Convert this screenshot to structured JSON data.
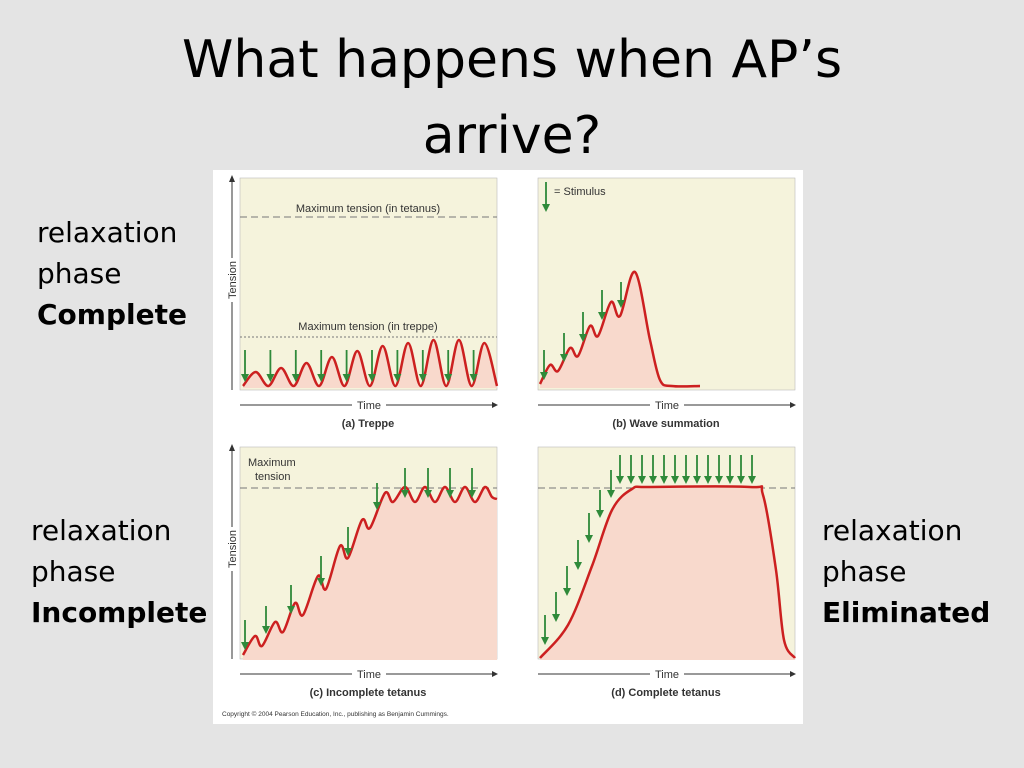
{
  "title": "What happens when AP’s arrive?",
  "side_labels": [
    {
      "line1": "relaxation",
      "line2": "phase",
      "emphasis": "Complete"
    },
    {
      "line1": "relaxation",
      "line2": "phase",
      "emphasis": "Incomplete"
    },
    {
      "line1": "relaxation",
      "line2": "phase",
      "emphasis": "Eliminated"
    }
  ],
  "figure": {
    "panels": [
      {
        "caption": "(a) Treppe",
        "y_label": "Tension",
        "x_label": "Time",
        "annotations": [
          "Maximum tension (in tetanus)",
          "Maximum tension (in treppe)"
        ]
      },
      {
        "caption": "(b) Wave summation",
        "x_label": "Time",
        "legend": "= Stimulus"
      },
      {
        "caption": "(c) Incomplete tetanus",
        "y_label": "Tension",
        "x_label": "Time",
        "annotations": [
          "Maximum",
          "tension"
        ]
      },
      {
        "caption": "(d) Complete tetanus",
        "x_label": "Time"
      }
    ],
    "copyright": "Copyright © 2004 Pearson Education, Inc., publishing as Benjamin Cummings."
  }
}
